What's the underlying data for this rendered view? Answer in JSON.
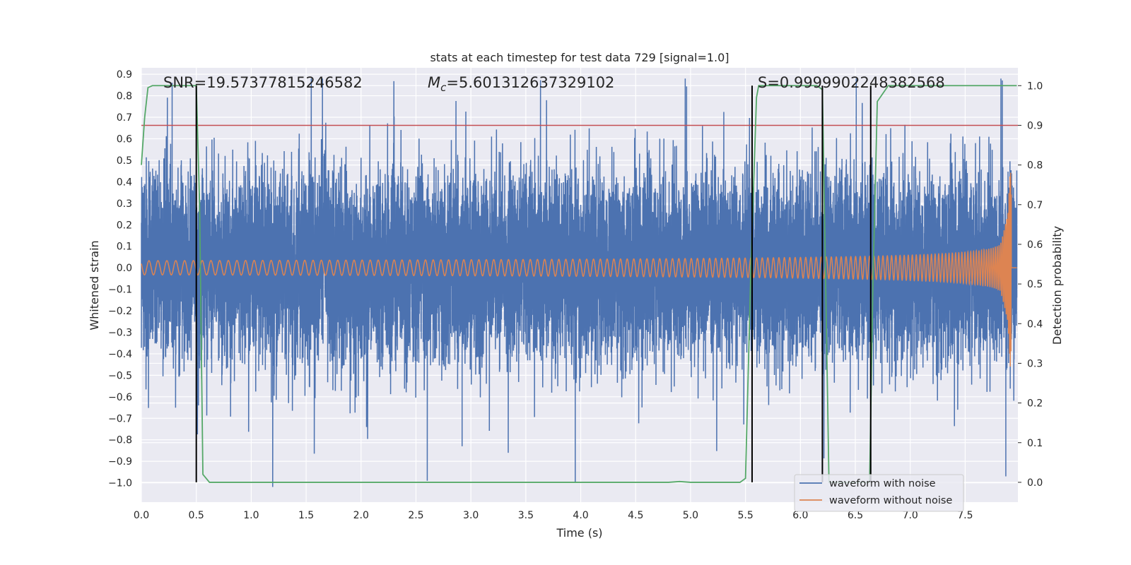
{
  "chart_data": {
    "type": "line",
    "title": "stats at each timestep for test data 729 [signal=1.0]",
    "xlabel": "Time (s)",
    "ylabel": "Whitened strain",
    "y2label": "Detection probability",
    "xlim": [
      0.0,
      7.98
    ],
    "ylim": [
      -1.09,
      0.93
    ],
    "y2lim": [
      -0.05,
      1.045
    ],
    "xticks": [
      0.0,
      0.5,
      1.0,
      1.5,
      2.0,
      2.5,
      3.0,
      3.5,
      4.0,
      4.5,
      5.0,
      5.5,
      6.0,
      6.5,
      7.0,
      7.5
    ],
    "xtick_labels": [
      "0.0",
      "0.5",
      "1.0",
      "1.5",
      "2.0",
      "2.5",
      "3.0",
      "3.5",
      "4.0",
      "4.5",
      "5.0",
      "5.5",
      "6.0",
      "6.5",
      "7.0",
      "7.5"
    ],
    "yticks": [
      0.9,
      0.8,
      0.7,
      0.6,
      0.5,
      0.4,
      0.3,
      0.2,
      0.1,
      0.0,
      -0.1,
      -0.2,
      -0.3,
      -0.4,
      -0.5,
      -0.6,
      -0.7,
      -0.8,
      -0.9,
      -1.0
    ],
    "ytick_labels": [
      "0.9",
      "0.8",
      "0.7",
      "0.6",
      "0.5",
      "0.4",
      "0.3",
      "0.2",
      "0.1",
      "0.0",
      "−0.1",
      "−0.2",
      "−0.3",
      "−0.4",
      "−0.5",
      "−0.6",
      "−0.7",
      "−0.8",
      "−0.9",
      "−1.0"
    ],
    "y2ticks": [
      1.0,
      0.9,
      0.8,
      0.7,
      0.6,
      0.5,
      0.4,
      0.3,
      0.2,
      0.1,
      0.0
    ],
    "y2tick_labels": [
      "1.0",
      "0.9",
      "0.8",
      "0.7",
      "0.6",
      "0.5",
      "0.4",
      "0.3",
      "0.2",
      "0.1",
      "0.0"
    ],
    "grid": true,
    "legend_position": "lower-right",
    "annotations": {
      "snr": "SNR=19.57377815246582",
      "mc_symbol": "M",
      "mc_sub": "c",
      "mc_value": "=5.601312637329102",
      "s": "S=0.9999902248382568"
    },
    "series": [
      {
        "name": "waveform with noise",
        "color": "#4c72b0",
        "axis": "left",
        "description": "noisy whitened strain, roughly +/-0.35 core band with spikes up to about +/-0.85",
        "x_range": [
          0.0,
          7.97
        ]
      },
      {
        "name": "waveform without noise",
        "color": "#dd8452",
        "axis": "left",
        "description": "chirp signal, amplitude growing from about 0.03 to 0.47 near 7.9 s, then flat at 0",
        "x_range": [
          0.0,
          7.97
        ]
      },
      {
        "name": "detection probability",
        "color": "#55a868",
        "axis": "right",
        "x": [
          0.0,
          0.03,
          0.06,
          0.1,
          0.15,
          0.3,
          0.45,
          0.5,
          0.53,
          0.56,
          0.62,
          1.0,
          2.0,
          3.0,
          4.0,
          4.5,
          4.8,
          4.9,
          5.0,
          5.2,
          5.45,
          5.5,
          5.55,
          5.6,
          5.62,
          5.7,
          5.8,
          6.0,
          6.15,
          6.2,
          6.23,
          6.26,
          6.3,
          6.5,
          6.63,
          6.66,
          6.7,
          6.75,
          6.8,
          7.0,
          7.5,
          7.97
        ],
        "y": [
          0.8,
          0.92,
          0.995,
          1.0,
          1.0,
          1.0,
          1.0,
          1.0,
          0.7,
          0.02,
          0.0,
          0.0,
          0.0,
          0.0,
          0.0,
          0.0,
          0.0,
          0.002,
          0.0,
          0.0,
          0.0,
          0.01,
          0.55,
          0.97,
          1.0,
          1.0,
          1.0,
          1.0,
          1.0,
          0.99,
          0.5,
          0.0,
          0.0,
          0.0,
          0.0,
          0.5,
          0.96,
          0.98,
          1.0,
          1.0,
          1.0,
          1.0
        ]
      }
    ],
    "threshold_line": {
      "color": "#c44e52",
      "y2": 0.9
    },
    "vertical_markers": {
      "color": "#000000",
      "x": [
        0.5,
        5.56,
        6.2,
        6.64
      ],
      "y2_range": [
        0.0,
        1.0
      ]
    }
  }
}
